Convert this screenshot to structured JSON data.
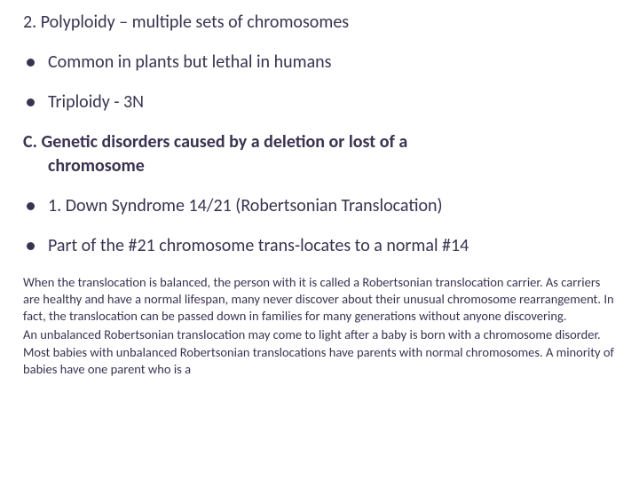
{
  "colors": {
    "text": "#3a3250",
    "bullet": "#3a3250",
    "background": "#ffffff"
  },
  "typography": {
    "heading_fontsize": 20,
    "paragraph_fontsize": 14.5,
    "font_family": "Segoe UI"
  },
  "heading1": "2. Polyploidy – multiple sets of chromosomes",
  "bullets1": {
    "items": [
      "Common in plants but lethal in humans",
      "Triploidy - 3N"
    ]
  },
  "sectionC": {
    "line1": "C. Genetic disorders caused by a deletion or lost of a",
    "line2": "chromosome"
  },
  "bullets2": {
    "items": [
      "1. Down Syndrome 14/21 (Robertsonian Translocation)",
      "Part of the #21 chromosome trans-locates to a normal #14"
    ]
  },
  "paragraphs": {
    "p1": "When the translocation is balanced, the person with it is called a Robertsonian translocation carrier. As carriers are healthy and have a normal lifespan, many never discover about their unusual chromosome rearrangement. In fact, the translocation can be passed down in families for many generations without anyone discovering.",
    "p2": "An unbalanced Robertsonian translocation may come to light after a baby is born with a chromosome disorder. Most babies with unbalanced Robertsonian translocations have parents with normal chromosomes. A minority of babies have one parent who is a"
  }
}
